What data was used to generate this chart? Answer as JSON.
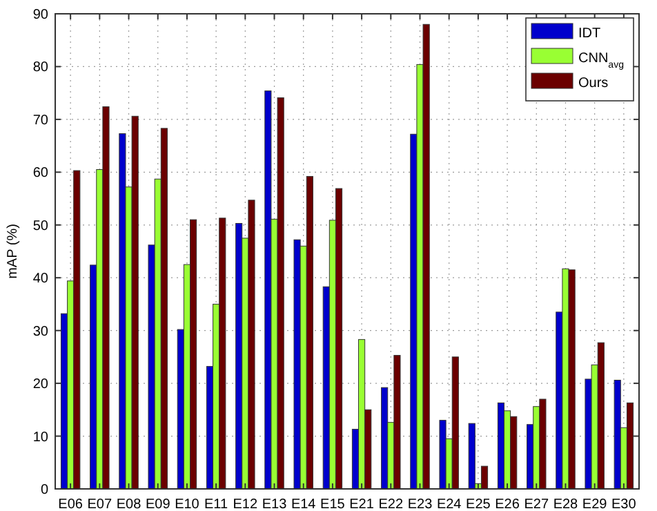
{
  "chart_data": {
    "type": "bar",
    "ylabel": "mAP (%)",
    "categories": [
      "E06",
      "E07",
      "E08",
      "E09",
      "E10",
      "E11",
      "E12",
      "E13",
      "E14",
      "E15",
      "E21",
      "E22",
      "E23",
      "E24",
      "E25",
      "E26",
      "E27",
      "E28",
      "E29",
      "E30"
    ],
    "series": [
      {
        "name": "IDT",
        "color": "#0000cc",
        "values": [
          33.2,
          42.4,
          67.3,
          46.2,
          30.2,
          23.2,
          50.3,
          75.4,
          47.2,
          38.3,
          11.3,
          19.2,
          67.2,
          13.0,
          12.4,
          16.3,
          12.2,
          33.5,
          20.8,
          20.6
        ]
      },
      {
        "name": "CNN$_{avg}$",
        "color": "#99ff33",
        "values": [
          39.4,
          60.5,
          57.2,
          58.7,
          42.5,
          35.0,
          47.5,
          51.1,
          46.0,
          50.9,
          28.3,
          12.6,
          80.4,
          9.5,
          1.0,
          14.8,
          15.6,
          41.7,
          23.5,
          11.6
        ]
      },
      {
        "name": "Ours",
        "color": "#6b0000",
        "values": [
          60.3,
          72.4,
          70.6,
          68.3,
          51.0,
          51.3,
          54.7,
          74.1,
          59.2,
          56.9,
          15.0,
          25.3,
          88.0,
          25.0,
          4.3,
          13.7,
          17.0,
          41.5,
          27.7,
          16.3
        ]
      }
    ],
    "ylim": [
      0,
      90
    ],
    "yticks": [
      0,
      10,
      20,
      30,
      40,
      50,
      60,
      70,
      80,
      90
    ],
    "grid": true,
    "legend": "top right"
  }
}
